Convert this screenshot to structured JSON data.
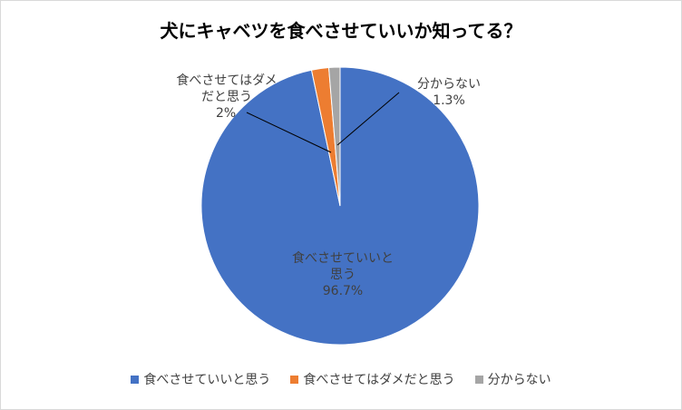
{
  "chart_data": {
    "type": "pie",
    "title": "犬にキャベツを食べさせていいか知ってる？",
    "start": "top, clockwise",
    "legend_position": "bottom",
    "slices": [
      {
        "label": "食べさせていいと思う",
        "label_lines": [
          "食べさせていいと",
          "思う"
        ],
        "value": 96.7,
        "value_label": "96.7%",
        "color": "#4472c4"
      },
      {
        "label": "食べさせてはダメだと思う",
        "label_lines": [
          "食べさせてはダメ",
          "だと思う"
        ],
        "value": 2,
        "value_label": "2%",
        "color": "#ed7d31"
      },
      {
        "label": "分からない",
        "label_lines": [
          "分からない"
        ],
        "value": 1.3,
        "value_label": "1.3%",
        "color": "#a5a5a5"
      }
    ]
  }
}
